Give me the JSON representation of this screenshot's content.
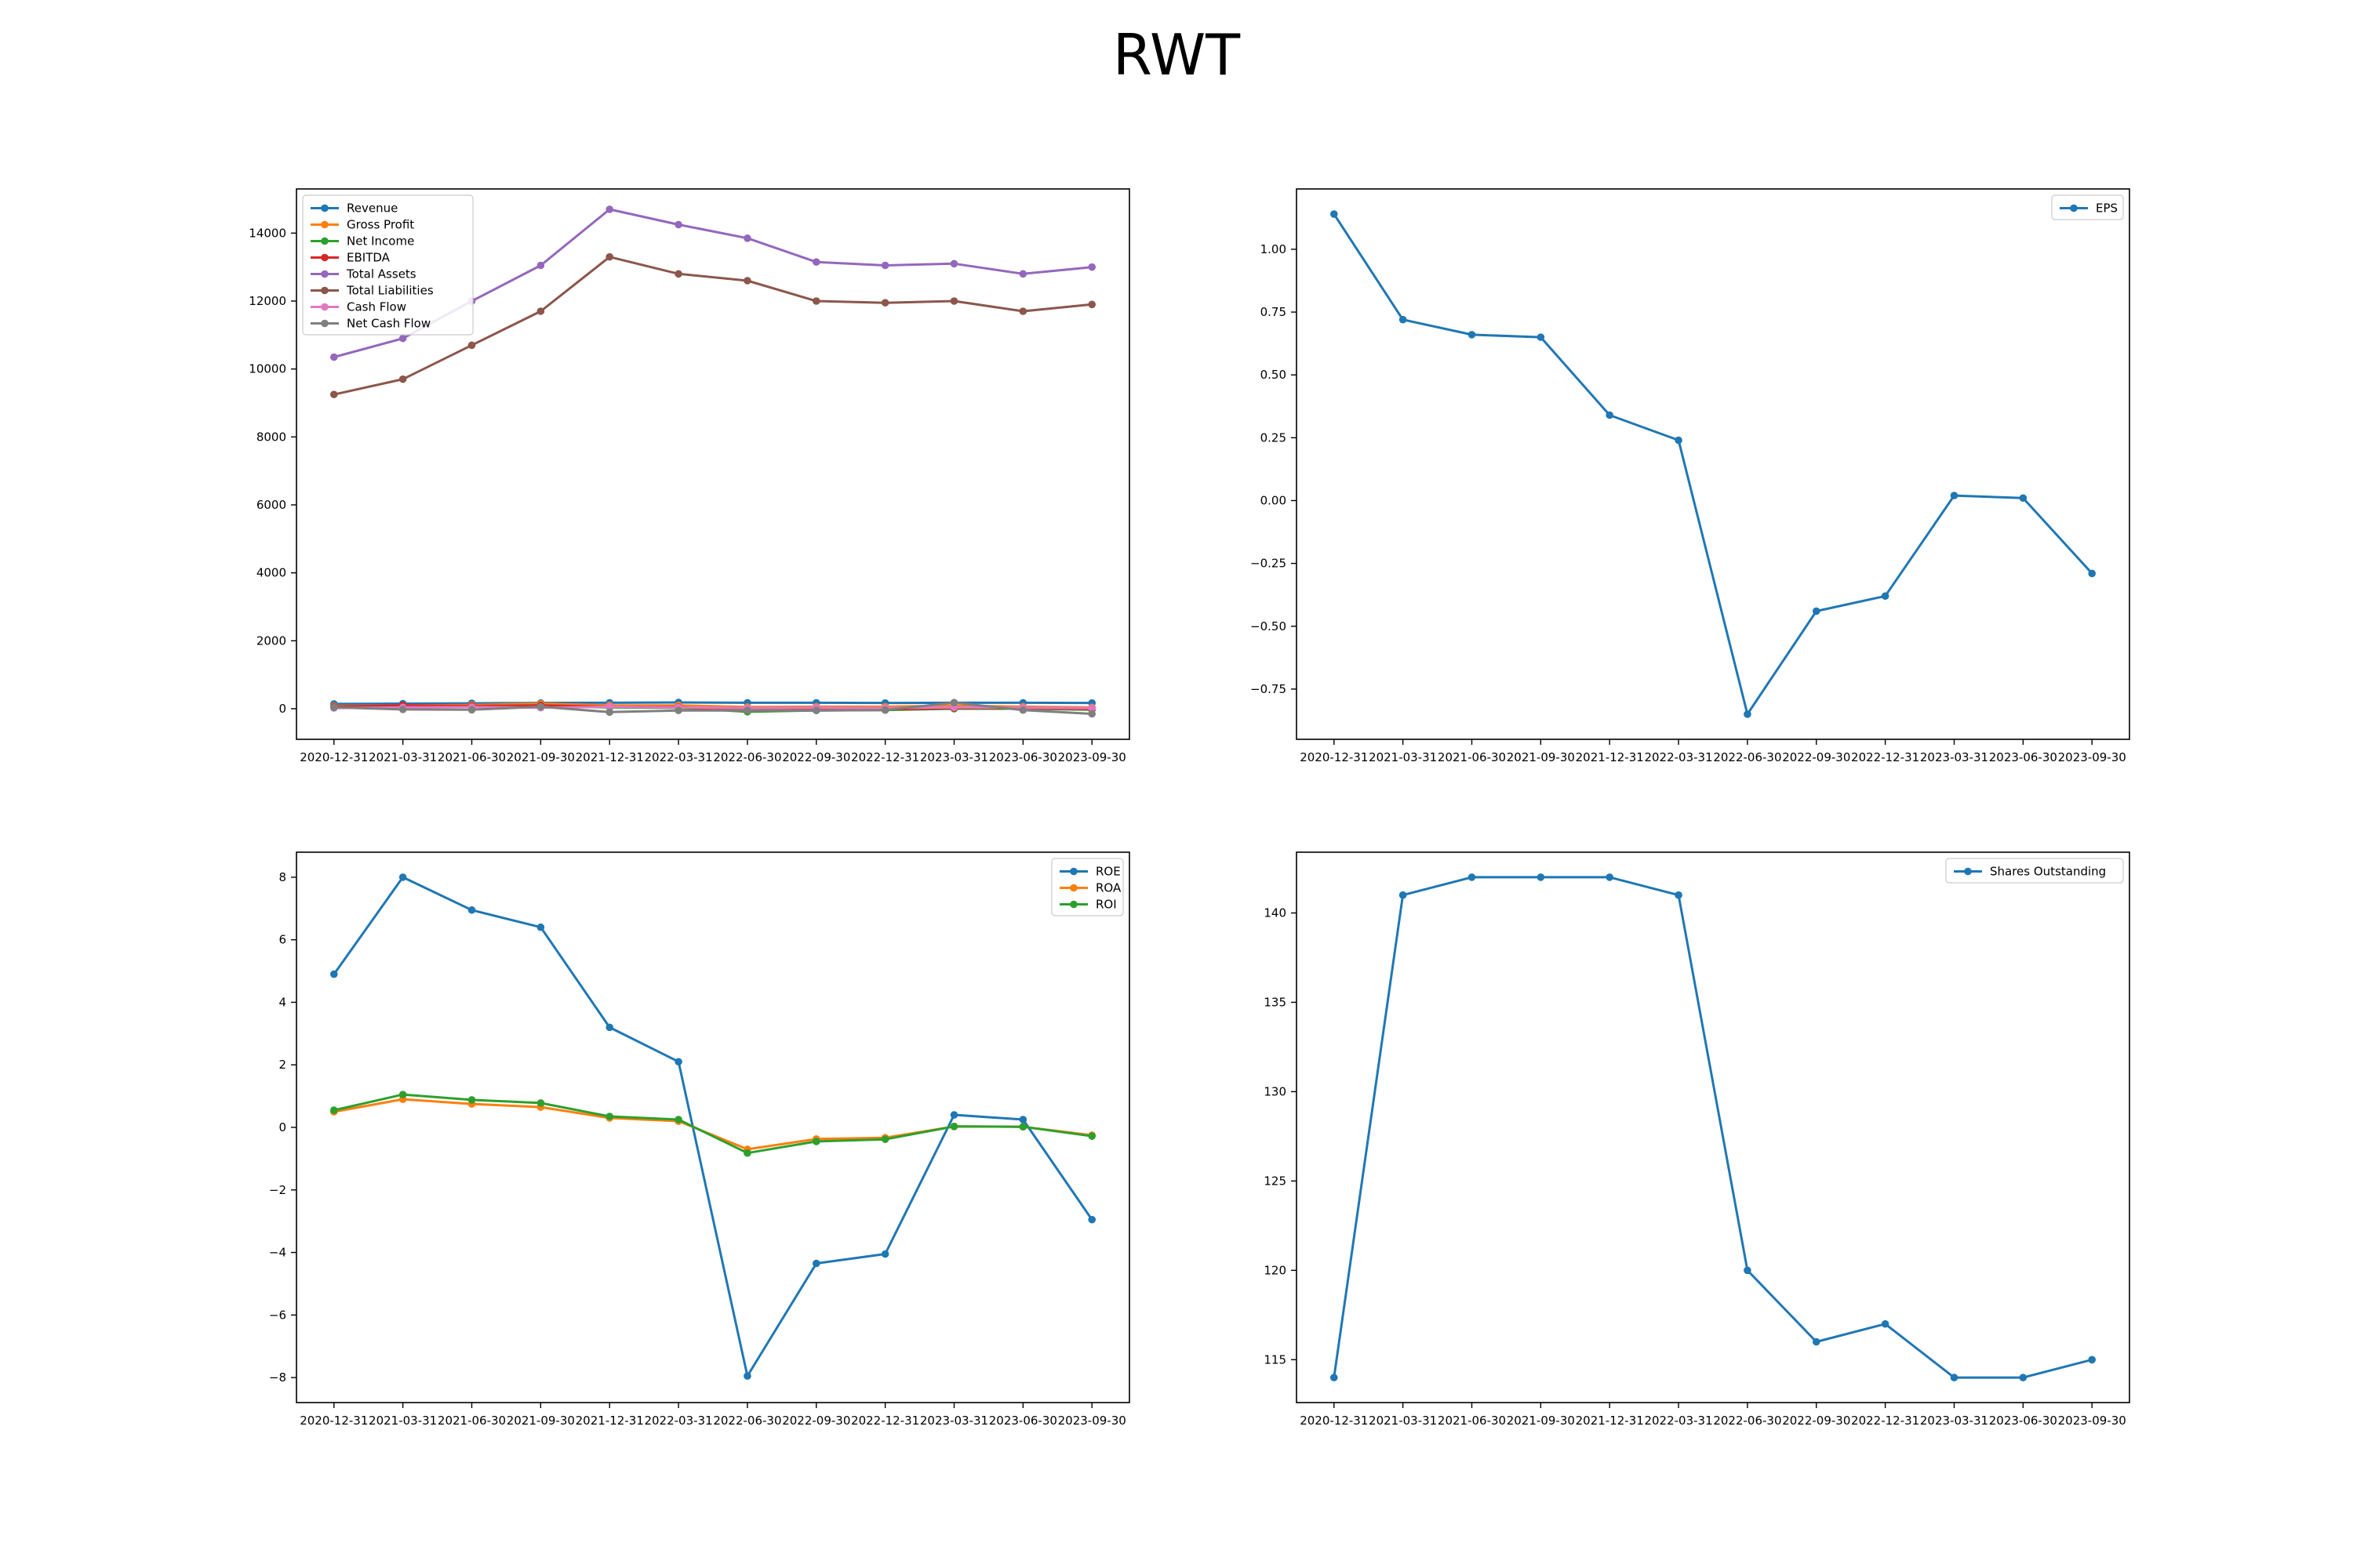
{
  "figure": {
    "title": "RWT"
  },
  "chart_data": [
    {
      "type": "line",
      "x": [
        "2020-12-31",
        "2021-03-31",
        "2021-06-30",
        "2021-09-30",
        "2021-12-31",
        "2022-03-31",
        "2022-06-30",
        "2022-09-30",
        "2022-12-31",
        "2023-03-31",
        "2023-06-30",
        "2023-09-30"
      ],
      "ylim": [
        -900,
        15300
      ],
      "yticks": [
        0,
        2000,
        4000,
        6000,
        8000,
        10000,
        12000,
        14000
      ],
      "legend": "upper left",
      "grid": false,
      "series": [
        {
          "name": "Revenue",
          "color": "#1f77b4",
          "values": [
            140,
            150,
            160,
            170,
            175,
            185,
            175,
            175,
            170,
            175,
            175,
            170
          ]
        },
        {
          "name": "Gross Profit",
          "color": "#ff7f0e",
          "values": [
            80,
            100,
            110,
            150,
            100,
            100,
            50,
            60,
            60,
            90,
            60,
            40
          ]
        },
        {
          "name": "Net Income",
          "color": "#2ca02c",
          "values": [
            50,
            80,
            60,
            80,
            40,
            30,
            -90,
            -50,
            -40,
            0,
            0,
            -30
          ]
        },
        {
          "name": "EBITDA",
          "color": "#d62728",
          "values": [
            60,
            100,
            80,
            100,
            60,
            50,
            -50,
            -30,
            -20,
            20,
            20,
            -10
          ]
        },
        {
          "name": "Total Assets",
          "color": "#9467bd",
          "values": [
            10350,
            10900,
            12000,
            13050,
            14700,
            14250,
            13850,
            13150,
            13050,
            13100,
            12800,
            13000
          ]
        },
        {
          "name": "Total Liabilities",
          "color": "#8c564b",
          "values": [
            9250,
            9700,
            10700,
            11700,
            13300,
            12800,
            12600,
            12000,
            11950,
            12000,
            11700,
            11900
          ]
        },
        {
          "name": "Cash Flow",
          "color": "#e377c2",
          "values": [
            20,
            40,
            50,
            30,
            60,
            40,
            20,
            30,
            20,
            40,
            30,
            20
          ]
        },
        {
          "name": "Net Cash Flow",
          "color": "#7f7f7f",
          "values": [
            40,
            -20,
            -30,
            60,
            -100,
            -50,
            -50,
            -50,
            -40,
            180,
            -40,
            -150
          ]
        }
      ]
    },
    {
      "type": "line",
      "x": [
        "2020-12-31",
        "2021-03-31",
        "2021-06-30",
        "2021-09-30",
        "2021-12-31",
        "2022-03-31",
        "2022-06-30",
        "2022-09-30",
        "2022-12-31",
        "2023-03-31",
        "2023-06-30",
        "2023-09-30"
      ],
      "ylim": [
        -0.95,
        1.24
      ],
      "yticks": [
        -0.75,
        -0.5,
        -0.25,
        0.0,
        0.25,
        0.5,
        0.75,
        1.0
      ],
      "ytick_labels": [
        "−0.75",
        "−0.50",
        "−0.25",
        "0.00",
        "0.25",
        "0.50",
        "0.75",
        "1.00"
      ],
      "legend": "upper right",
      "grid": false,
      "series": [
        {
          "name": "EPS",
          "color": "#1f77b4",
          "values": [
            1.14,
            0.72,
            0.66,
            0.65,
            0.34,
            0.24,
            -0.85,
            -0.44,
            -0.38,
            0.02,
            0.01,
            -0.29
          ]
        }
      ]
    },
    {
      "type": "line",
      "x": [
        "2020-12-31",
        "2021-03-31",
        "2021-06-30",
        "2021-09-30",
        "2021-12-31",
        "2022-03-31",
        "2022-06-30",
        "2022-09-30",
        "2022-12-31",
        "2023-03-31",
        "2023-06-30",
        "2023-09-30"
      ],
      "ylim": [
        -8.8,
        8.8
      ],
      "yticks": [
        -8,
        -6,
        -4,
        -2,
        0,
        2,
        4,
        6,
        8
      ],
      "ytick_labels": [
        "−8",
        "−6",
        "−4",
        "−2",
        "0",
        "2",
        "4",
        "6",
        "8"
      ],
      "legend": "upper right",
      "grid": false,
      "series": [
        {
          "name": "ROE",
          "color": "#1f77b4",
          "values": [
            4.9,
            8.0,
            6.95,
            6.4,
            3.2,
            2.1,
            -7.95,
            -4.35,
            -4.05,
            0.4,
            0.25,
            -2.95
          ]
        },
        {
          "name": "ROA",
          "color": "#ff7f0e",
          "values": [
            0.5,
            0.9,
            0.75,
            0.65,
            0.3,
            0.2,
            -0.7,
            -0.37,
            -0.33,
            0.03,
            0.02,
            -0.25
          ]
        },
        {
          "name": "ROI",
          "color": "#2ca02c",
          "values": [
            0.55,
            1.05,
            0.88,
            0.78,
            0.35,
            0.25,
            -0.82,
            -0.45,
            -0.38,
            0.03,
            0.02,
            -0.28
          ]
        }
      ]
    },
    {
      "type": "line",
      "x": [
        "2020-12-31",
        "2021-03-31",
        "2021-06-30",
        "2021-09-30",
        "2021-12-31",
        "2022-03-31",
        "2022-06-30",
        "2022-09-30",
        "2022-12-31",
        "2023-03-31",
        "2023-06-30",
        "2023-09-30"
      ],
      "ylim": [
        112.6,
        143.4
      ],
      "yticks": [
        115,
        120,
        125,
        130,
        135,
        140
      ],
      "legend": "upper right",
      "grid": false,
      "series": [
        {
          "name": "Shares Outstanding",
          "color": "#1f77b4",
          "values": [
            114,
            141,
            142,
            142,
            142,
            141,
            120,
            116,
            117,
            114,
            114,
            115
          ]
        }
      ]
    }
  ]
}
